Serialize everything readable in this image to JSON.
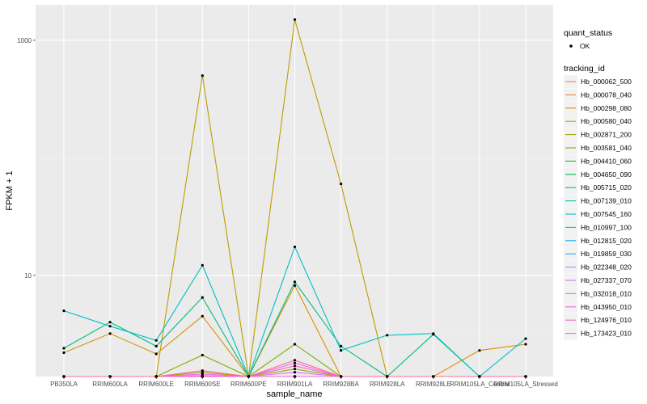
{
  "chart_data": {
    "type": "line",
    "xlabel": "sample_name",
    "ylabel": "FPKM + 1",
    "y_scale": "log10",
    "ylim": [
      1.38,
      2000
    ],
    "y_ticks": [
      10,
      1000
    ],
    "y_tick_labels": [
      "10",
      "1000"
    ],
    "grid": true,
    "legend_position": "right",
    "categories": [
      "PB350LA",
      "RRIM600LA",
      "RRIM600LE",
      "RRIM600SE",
      "RRIM600PE",
      "RRIM901LA",
      "RRIM928BA",
      "RRIM928LA",
      "RRIM928LE",
      "RRIM105LA_Control",
      "RRIM105LA_Stressed"
    ],
    "shape_legend": {
      "title": "quant_status",
      "items": [
        "OK"
      ]
    },
    "color_legend_title": "tracking_id",
    "series": [
      {
        "name": "Hb_000062_500",
        "color": "#F8766D",
        "values": [
          1.02,
          1.03,
          1.0,
          1.05,
          1.0,
          1.1,
          1.02,
          1.0,
          1.0,
          1.0,
          1.0
        ]
      },
      {
        "name": "Hb_000078_040",
        "color": "#EA8331",
        "values": [
          1.03,
          1.04,
          1.02,
          1.1,
          1.0,
          1.15,
          1.03,
          1.0,
          1.0,
          1.0,
          1.0
        ]
      },
      {
        "name": "Hb_000298_080",
        "color": "#D89000",
        "values": [
          2.2,
          3.2,
          2.15,
          4.5,
          1.0,
          8.2,
          1.05,
          1.0,
          1.0,
          2.3,
          2.6
        ]
      },
      {
        "name": "Hb_000580_040",
        "color": "#C09B00",
        "values": [
          1.05,
          1.05,
          1.03,
          500,
          1.03,
          1500,
          60,
          1.0,
          1.0,
          1.0,
          1.0
        ]
      },
      {
        "name": "Hb_002871_200",
        "color": "#A3A500",
        "values": [
          1.01,
          1.0,
          1.0,
          1.5,
          1.0,
          1.6,
          1.0,
          1.0,
          1.0,
          1.0,
          1.0
        ]
      },
      {
        "name": "Hb_003581_040",
        "color": "#7CAE00",
        "values": [
          1.0,
          1.02,
          1.0,
          2.1,
          1.0,
          2.6,
          1.02,
          1.0,
          1.0,
          1.0,
          1.0
        ]
      },
      {
        "name": "Hb_004410_060",
        "color": "#39B600",
        "values": [
          1.0,
          1.0,
          1.0,
          1.3,
          1.0,
          1.2,
          1.0,
          1.0,
          1.0,
          1.0,
          1.0
        ]
      },
      {
        "name": "Hb_004650_090",
        "color": "#00BB4E",
        "values": [
          1.04,
          1.06,
          1.02,
          1.4,
          1.0,
          1.3,
          1.03,
          1.0,
          1.0,
          1.0,
          1.0
        ]
      },
      {
        "name": "Hb_005715_020",
        "color": "#00BF7D",
        "values": [
          2.4,
          4.0,
          2.5,
          6.5,
          1.01,
          8.8,
          2.5,
          1.0,
          3.15,
          1.06,
          1.04
        ]
      },
      {
        "name": "Hb_007139_010",
        "color": "#00C1A3",
        "values": [
          1.0,
          1.0,
          1.0,
          1.2,
          1.0,
          1.25,
          1.0,
          1.0,
          1.0,
          1.0,
          1.0
        ]
      },
      {
        "name": "Hb_007545_160",
        "color": "#00BFC4",
        "values": [
          5.0,
          3.7,
          2.8,
          12.2,
          1.25,
          17.5,
          2.3,
          3.1,
          3.2,
          1.1,
          2.9
        ]
      },
      {
        "name": "Hb_010997_100",
        "color": "#00BAE0",
        "values": [
          1.0,
          1.0,
          1.0,
          1.0,
          1.0,
          1.05,
          1.0,
          1.0,
          1.0,
          1.0,
          1.0
        ]
      },
      {
        "name": "Hb_012815_020",
        "color": "#00B0F6",
        "values": [
          0.95,
          0.96,
          0.95,
          0.98,
          0.95,
          1.02,
          0.96,
          0.95,
          0.95,
          0.95,
          0.95
        ]
      },
      {
        "name": "Hb_019859_030",
        "color": "#35A2FF",
        "values": [
          0.97,
          0.97,
          0.96,
          1.0,
          0.96,
          1.0,
          0.97,
          0.96,
          0.96,
          0.96,
          0.96
        ]
      },
      {
        "name": "Hb_022348_020",
        "color": "#9590FF",
        "values": [
          1.01,
          1.02,
          1.0,
          1.25,
          1.0,
          1.35,
          1.02,
          1.0,
          1.0,
          1.0,
          1.0
        ]
      },
      {
        "name": "Hb_027337_070",
        "color": "#C77CFF",
        "values": [
          1.02,
          1.03,
          1.01,
          1.35,
          1.0,
          1.5,
          1.03,
          1.0,
          1.0,
          1.0,
          1.0
        ]
      },
      {
        "name": "Hb_032018_010",
        "color": "#E76BF3",
        "values": [
          1.03,
          1.04,
          1.02,
          1.45,
          1.0,
          1.8,
          1.04,
          1.0,
          1.0,
          1.0,
          1.0
        ]
      },
      {
        "name": "Hb_043950_010",
        "color": "#FA62DB",
        "values": [
          1.01,
          1.01,
          1.0,
          1.2,
          1.0,
          1.15,
          1.0,
          1.0,
          1.0,
          1.0,
          1.0
        ]
      },
      {
        "name": "Hb_124976_010",
        "color": "#FF62BC",
        "values": [
          1.08,
          1.1,
          1.04,
          1.4,
          1.01,
          1.7,
          1.06,
          1.0,
          1.0,
          1.0,
          1.0
        ]
      },
      {
        "name": "Hb_173423_010",
        "color": "#FF6C91",
        "values": [
          1.1,
          1.12,
          1.05,
          1.55,
          1.02,
          1.9,
          1.08,
          1.0,
          1.0,
          1.0,
          1.0
        ]
      }
    ]
  }
}
